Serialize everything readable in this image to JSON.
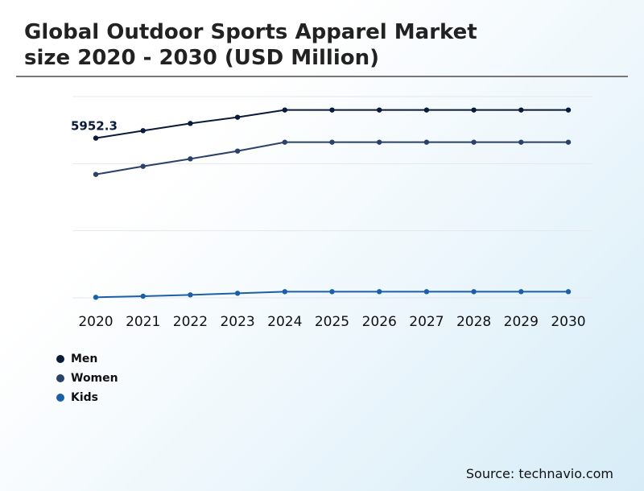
{
  "title_line1": "Global Outdoor Sports Apparel Market",
  "title_line2": "size 2020 - 2030 (USD Million)",
  "source": "Source: technavio.com",
  "chart_data": {
    "type": "line",
    "title": "Global Outdoor Sports Apparel Market size 2020 - 2030 (USD Million)",
    "categories": [
      "2020",
      "2021",
      "2022",
      "2023",
      "2024",
      "2025",
      "2026",
      "2027",
      "2028",
      "2029",
      "2030"
    ],
    "ylim": [
      0,
      7500
    ],
    "grid": true,
    "legend": "bottom-left",
    "series": [
      {
        "name": "Men",
        "color": "#0a1a3a",
        "values": [
          5952.3,
          6230,
          6500,
          6730,
          7000,
          7000,
          7000,
          7000,
          7000,
          7000,
          7000
        ]
      },
      {
        "name": "Women",
        "color": "#2b4169",
        "values": [
          4600,
          4900,
          5180,
          5470,
          5800,
          5800,
          5800,
          5800,
          5800,
          5800,
          5800
        ]
      },
      {
        "name": "Kids",
        "color": "#1b5fa8",
        "values": [
          20,
          60,
          110,
          170,
          230,
          230,
          230,
          230,
          230,
          230,
          230
        ]
      }
    ],
    "annotations": [
      {
        "series": "Men",
        "index": 0,
        "text": "5952.3"
      }
    ]
  }
}
